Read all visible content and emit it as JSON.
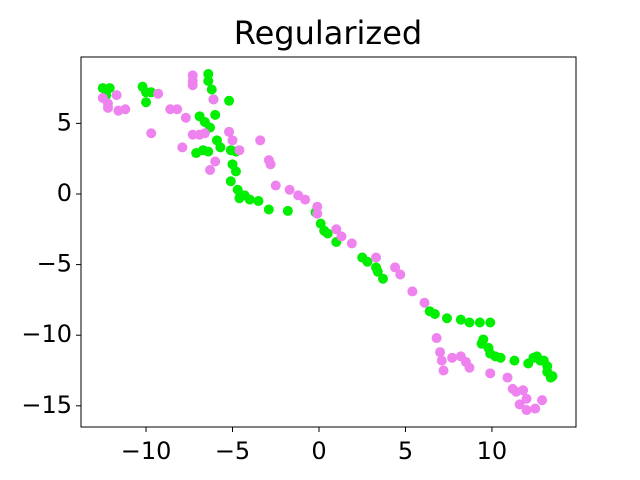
{
  "chart_data": {
    "type": "scatter",
    "title": "Regularized",
    "xlim": [
      -13.76,
      14.86
    ],
    "ylim": [
      -16.5,
      9.7
    ],
    "xticks": [
      {
        "value": -10,
        "label": "−10"
      },
      {
        "value": -5,
        "label": "−5"
      },
      0,
      5,
      10
    ],
    "yticks": [
      {
        "value": -15,
        "label": "−15"
      },
      {
        "value": -10,
        "label": "−10"
      },
      {
        "value": -5,
        "label": "−5"
      },
      0,
      5
    ],
    "series": [
      {
        "color": "#00ee00",
        "x": [
          -12.5,
          -12.1,
          -12.3,
          -10.2,
          -10.0,
          -10.0,
          -9.7,
          -6.4,
          -6.4,
          -6.2,
          -6.1,
          -5.2,
          -6.9,
          -6.6,
          -6.3,
          -6.0,
          -5.9,
          -7.1,
          -6.7,
          -6.4,
          -5.7,
          -5.1,
          -4.8,
          -5.0,
          -4.8,
          -5.1,
          -4.7,
          -4.6,
          -4.3,
          -4.0,
          -3.5,
          -2.9,
          -1.8,
          -0.2,
          0.1,
          0.3,
          0.5,
          1.0,
          2.5,
          2.8,
          3.3,
          3.4,
          3.7,
          6.4,
          6.7,
          7.4,
          8.2,
          8.7,
          9.3,
          9.9,
          9.4,
          9.5,
          9.8,
          9.9,
          10.2,
          10.5,
          11.3,
          12.1,
          12.4,
          12.6,
          12.8,
          13.0,
          13.2,
          13.2,
          13.4,
          13.5
        ],
        "y": [
          7.5,
          7.5,
          7.0,
          7.6,
          7.2,
          6.5,
          7.2,
          8.5,
          8.0,
          7.4,
          6.7,
          6.6,
          5.5,
          5.1,
          4.7,
          5.6,
          3.8,
          2.9,
          3.1,
          3.0,
          3.3,
          3.1,
          3.0,
          2.1,
          1.6,
          0.9,
          0.3,
          -0.3,
          -0.1,
          -0.4,
          -0.5,
          -1.1,
          -1.2,
          -1.3,
          -2.1,
          -2.6,
          -2.8,
          -3.4,
          -4.5,
          -4.8,
          -5.2,
          -5.5,
          -6.0,
          -8.3,
          -8.5,
          -8.8,
          -8.9,
          -9.1,
          -9.1,
          -9.1,
          -10.6,
          -10.3,
          -10.9,
          -11.3,
          -11.5,
          -11.6,
          -11.8,
          -12.0,
          -11.6,
          -11.5,
          -11.8,
          -11.8,
          -12.2,
          -12.6,
          -13.0,
          -12.9
        ]
      },
      {
        "color": "#ee82ee",
        "x": [
          -12.5,
          -12.2,
          -12.2,
          -11.7,
          -11.6,
          -11.2,
          -9.7,
          -9.3,
          -8.6,
          -8.2,
          -7.7,
          -7.9,
          -7.3,
          -7.3,
          -7.3,
          -7.3,
          -6.9,
          -6.6,
          -6.3,
          -6.0,
          -6.1,
          -5.2,
          -5.0,
          -4.6,
          -3.4,
          -2.9,
          -2.8,
          -2.5,
          -1.7,
          -1.2,
          -0.8,
          -0.1,
          -0.1,
          1.0,
          1.3,
          1.9,
          3.3,
          4.4,
          4.7,
          5.4,
          6.1,
          6.8,
          7.0,
          7.1,
          7.2,
          7.7,
          8.2,
          8.5,
          8.7,
          9.9,
          10.9,
          11.2,
          11.4,
          11.8,
          11.6,
          12.0,
          12.5,
          12.9,
          12.0
        ],
        "y": [
          6.8,
          6.4,
          6.1,
          7.0,
          5.9,
          6.0,
          4.3,
          7.1,
          6.0,
          6.0,
          5.4,
          3.3,
          8.4,
          8.0,
          7.7,
          4.2,
          4.2,
          4.3,
          1.7,
          2.3,
          6.7,
          4.4,
          3.8,
          3.1,
          3.8,
          2.4,
          2.1,
          0.6,
          0.3,
          -0.1,
          -0.4,
          -0.9,
          -1.4,
          -2.5,
          -3.0,
          -3.5,
          -4.5,
          -5.2,
          -5.7,
          -6.9,
          -7.7,
          -10.2,
          -11.2,
          -11.8,
          -12.5,
          -11.6,
          -11.5,
          -11.9,
          -12.3,
          -12.7,
          -13.0,
          -13.8,
          -14.0,
          -13.9,
          -14.9,
          -15.3,
          -15.2,
          -14.6,
          -14.5
        ]
      }
    ]
  }
}
